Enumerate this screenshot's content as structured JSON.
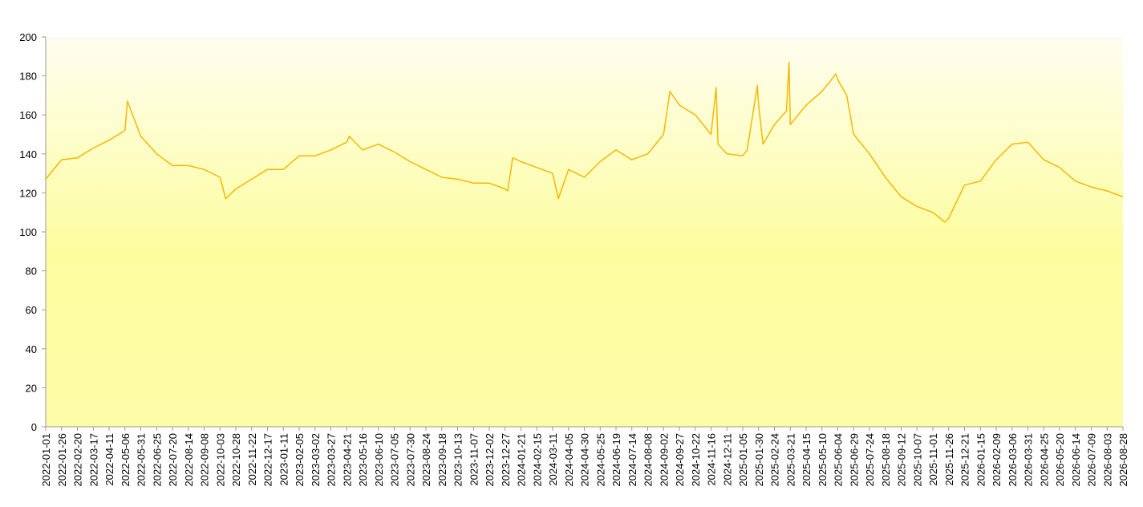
{
  "chart_data": {
    "type": "line",
    "color": "#f5b800",
    "x": [
      "2022-01-01",
      "2022-01-26",
      "2022-02-20",
      "2022-03-17",
      "2022-04-11",
      "2022-05-06",
      "2022-05-10",
      "2022-05-31",
      "2022-06-25",
      "2022-07-20",
      "2022-08-14",
      "2022-09-08",
      "2022-10-03",
      "2022-10-12",
      "2022-10-28",
      "2022-11-22",
      "2022-12-17",
      "2023-01-11",
      "2023-02-05",
      "2023-03-02",
      "2023-03-27",
      "2023-04-21",
      "2023-04-25",
      "2023-05-16",
      "2023-06-10",
      "2023-07-05",
      "2023-07-30",
      "2023-08-24",
      "2023-09-18",
      "2023-10-13",
      "2023-11-07",
      "2023-12-02",
      "2023-12-27",
      "2023-12-31",
      "2024-01-08",
      "2024-01-21",
      "2024-02-15",
      "2024-03-11",
      "2024-03-20",
      "2024-04-05",
      "2024-04-30",
      "2024-05-25",
      "2024-06-19",
      "2024-07-14",
      "2024-08-08",
      "2024-09-02",
      "2024-09-12",
      "2024-09-27",
      "2024-10-22",
      "2024-11-16",
      "2024-11-24",
      "2024-11-27",
      "2024-12-11",
      "2025-01-05",
      "2025-01-12",
      "2025-01-28",
      "2025-01-30",
      "2025-02-06",
      "2025-02-24",
      "2025-03-15",
      "2025-03-19",
      "2025-03-21",
      "2025-04-15",
      "2025-05-10",
      "2025-06-01",
      "2025-06-04",
      "2025-06-18",
      "2025-06-29",
      "2025-07-24",
      "2025-08-18",
      "2025-09-12",
      "2025-10-07",
      "2025-11-01",
      "2025-11-20",
      "2025-11-26",
      "2025-12-21",
      "2026-01-15",
      "2026-02-09",
      "2026-03-06",
      "2026-03-31",
      "2026-04-25",
      "2026-05-20",
      "2026-06-14",
      "2026-07-09",
      "2026-08-03",
      "2026-08-28"
    ],
    "values": [
      127,
      137,
      138,
      143,
      147,
      152,
      167,
      149,
      140,
      134,
      134,
      132,
      128,
      117,
      122,
      127,
      132,
      132,
      139,
      139,
      142,
      146,
      149,
      142,
      145,
      141,
      136,
      132,
      128,
      127,
      125,
      125,
      122,
      121,
      138,
      136,
      133,
      130,
      117,
      132,
      128,
      136,
      142,
      137,
      140,
      150,
      172,
      165,
      160,
      150,
      174,
      145,
      140,
      139,
      142,
      175,
      165,
      145,
      155,
      162,
      187,
      155,
      165,
      172,
      181,
      178,
      170,
      150,
      140,
      128,
      118,
      113,
      110,
      105,
      107,
      124,
      126,
      137,
      145,
      146,
      137,
      133,
      126,
      123,
      121,
      118
    ],
    "xlim": [
      "2022-01-01",
      "2026-08-28"
    ],
    "xticks": [
      "2022-01-01",
      "2022-01-26",
      "2022-02-20",
      "2022-03-17",
      "2022-04-11",
      "2022-05-06",
      "2022-05-31",
      "2022-06-25",
      "2022-07-20",
      "2022-08-14",
      "2022-09-08",
      "2022-10-03",
      "2022-10-28",
      "2022-11-22",
      "2022-12-17",
      "2023-01-11",
      "2023-02-05",
      "2023-03-02",
      "2023-03-27",
      "2023-04-21",
      "2023-05-16",
      "2023-06-10",
      "2023-07-05",
      "2023-07-30",
      "2023-08-24",
      "2023-09-18",
      "2023-10-13",
      "2023-11-07",
      "2023-12-02",
      "2023-12-27",
      "2024-01-21",
      "2024-02-15",
      "2024-03-11",
      "2024-04-05",
      "2024-04-30",
      "2024-05-25",
      "2024-06-19",
      "2024-07-14",
      "2024-08-08",
      "2024-09-02",
      "2024-09-27",
      "2024-10-22",
      "2024-11-16",
      "2024-12-11",
      "2025-01-05",
      "2025-01-30",
      "2025-02-24",
      "2025-03-21",
      "2025-04-15",
      "2025-05-10",
      "2025-06-04",
      "2025-06-29",
      "2025-07-24",
      "2025-08-18",
      "2025-09-12",
      "2025-10-07",
      "2025-11-01",
      "2025-11-26",
      "2025-12-21",
      "2026-01-15",
      "2026-02-09",
      "2026-03-06",
      "2026-03-31",
      "2026-04-25",
      "2026-05-20",
      "2026-06-14",
      "2026-07-09",
      "2026-08-03",
      "2026-08-28"
    ],
    "ylim": [
      0,
      200
    ],
    "yticks": [
      0,
      20,
      40,
      60,
      80,
      100,
      120,
      140,
      160,
      180,
      200
    ]
  }
}
